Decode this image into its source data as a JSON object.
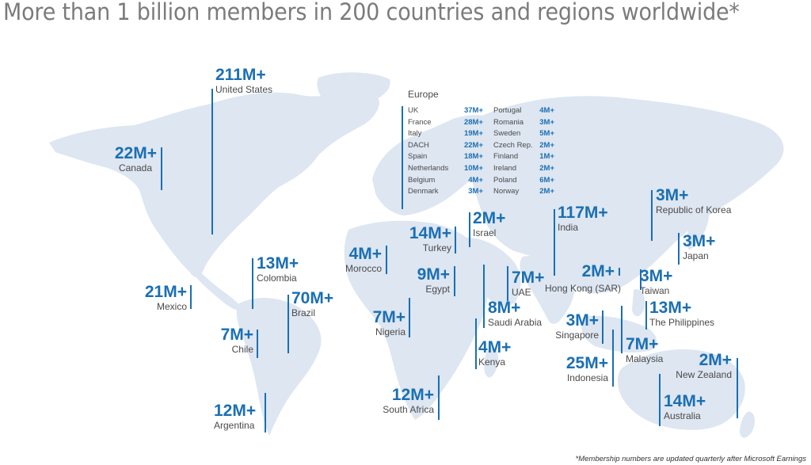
{
  "headline": "More than 1 billion members in 200 countries and regions worldwide*",
  "footnote": "*Membership numbers are updated quarterly after Microsoft Earnings",
  "colors": {
    "accent": "#1a6fb3",
    "land": "#dde6f1",
    "label": "#4a4a4a",
    "title": "#7b7b7b"
  },
  "regions": {
    "united_states": {
      "value": "211M+",
      "label": "United States"
    },
    "canada": {
      "value": "22M+",
      "label": "Canada"
    },
    "mexico": {
      "value": "21M+",
      "label": "Mexico"
    },
    "colombia": {
      "value": "13M+",
      "label": "Colombia"
    },
    "brazil": {
      "value": "70M+",
      "label": "Brazil"
    },
    "chile": {
      "value": "7M+",
      "label": "Chile"
    },
    "argentina": {
      "value": "12M+",
      "label": "Argentina"
    },
    "morocco": {
      "value": "4M+",
      "label": "Morocco"
    },
    "turkey": {
      "value": "14M+",
      "label": "Turkey"
    },
    "israel": {
      "value": "2M+",
      "label": "Israel"
    },
    "egypt": {
      "value": "9M+",
      "label": "Egypt"
    },
    "nigeria": {
      "value": "7M+",
      "label": "Nigeria"
    },
    "saudi_arabia": {
      "value": "8M+",
      "label": "Saudi Arabia"
    },
    "uae": {
      "value": "7M+",
      "label": "UAE"
    },
    "kenya": {
      "value": "4M+",
      "label": "Kenya"
    },
    "south_africa": {
      "value": "12M+",
      "label": "South Africa"
    },
    "india": {
      "value": "117M+",
      "label": "India"
    },
    "hong_kong": {
      "value": "2M+",
      "label": "Hong Kong (SAR)"
    },
    "taiwan": {
      "value": "3M+",
      "label": "Taiwan"
    },
    "republic_of_korea": {
      "value": "3M+",
      "label": "Republic of Korea"
    },
    "japan": {
      "value": "3M+",
      "label": "Japan"
    },
    "philippines": {
      "value": "13M+",
      "label": "The Philippines"
    },
    "singapore": {
      "value": "3M+",
      "label": "Singapore"
    },
    "malaysia": {
      "value": "7M+",
      "label": "Malaysia"
    },
    "indonesia": {
      "value": "25M+",
      "label": "Indonesia"
    },
    "new_zealand": {
      "value": "2M+",
      "label": "New Zealand"
    },
    "australia": {
      "value": "14M+",
      "label": "Australia"
    }
  },
  "europe": {
    "title": "Europe",
    "left": [
      {
        "country": "UK",
        "value": "37M+"
      },
      {
        "country": "France",
        "value": "28M+"
      },
      {
        "country": "Italy",
        "value": "19M+"
      },
      {
        "country": "DACH",
        "value": "22M+"
      },
      {
        "country": "Spain",
        "value": "18M+"
      },
      {
        "country": "Netherlands",
        "value": "10M+"
      },
      {
        "country": "Belgium",
        "value": "4M+"
      },
      {
        "country": "Denmark",
        "value": "3M+"
      }
    ],
    "right": [
      {
        "country": "Portugal",
        "value": "4M+"
      },
      {
        "country": "Romania",
        "value": "3M+"
      },
      {
        "country": "Sweden",
        "value": "5M+"
      },
      {
        "country": "Czech Rep.",
        "value": "2M+"
      },
      {
        "country": "Finland",
        "value": "1M+"
      },
      {
        "country": "Ireland",
        "value": "2M+"
      },
      {
        "country": "Poland",
        "value": "6M+"
      },
      {
        "country": "Norway",
        "value": "2M+"
      }
    ]
  }
}
